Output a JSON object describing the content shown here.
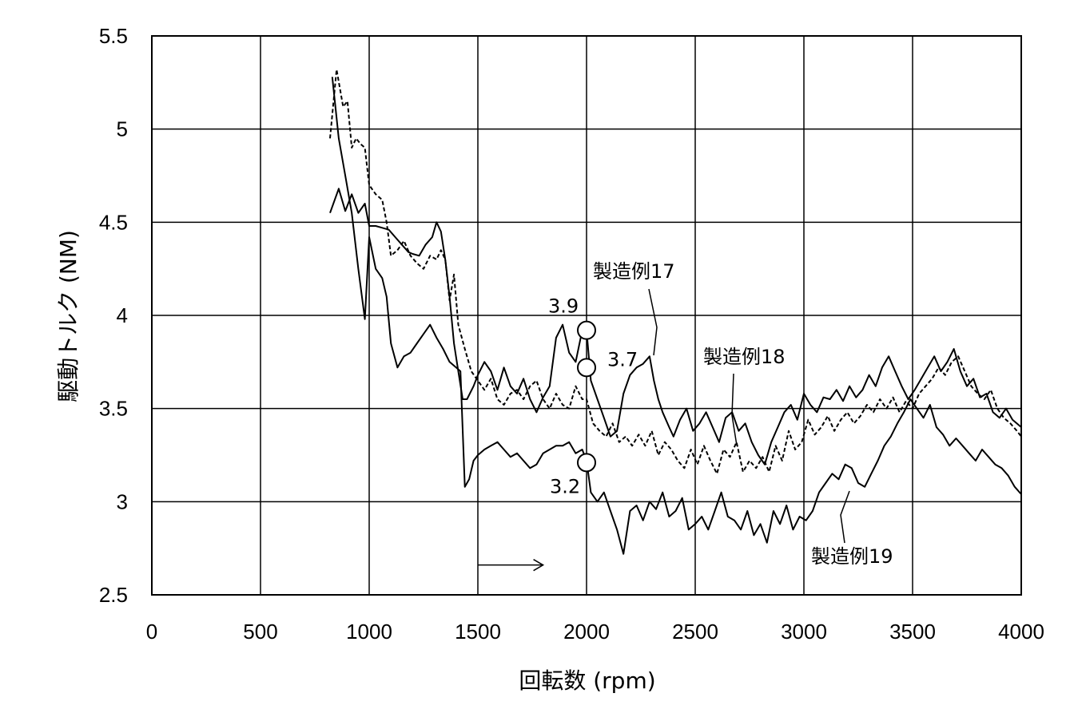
{
  "chart_data": {
    "type": "line",
    "xlabel": "回転数 (rpm)",
    "ylabel": "駆動トルク (NM)",
    "xlim": [
      0,
      4000
    ],
    "ylim": [
      2.5,
      5.5
    ],
    "x_ticks": [
      "0",
      "500",
      "1000",
      "1500",
      "2000",
      "2500",
      "3000",
      "3500",
      "4000"
    ],
    "y_ticks": [
      "2.5",
      "3",
      "3.5",
      "4",
      "4.5",
      "5",
      "5.5"
    ],
    "grid": true,
    "series": [
      {
        "name": "製造例17",
        "style": "solid",
        "x": [
          820,
          860,
          890,
          920,
          950,
          980,
          1000,
          1030,
          1060,
          1090,
          1120,
          1150,
          1180,
          1200,
          1230,
          1260,
          1290,
          1310,
          1330,
          1350,
          1370,
          1390,
          1410,
          1430,
          1450,
          1480,
          1500,
          1530,
          1560,
          1590,
          1620,
          1650,
          1680,
          1710,
          1740,
          1770,
          1800,
          1830,
          1860,
          1890,
          1920,
          1950,
          1980,
          2000,
          2020,
          2050,
          2080,
          2110,
          2140,
          2170,
          2200,
          2230,
          2260,
          2290,
          2310,
          2330,
          2350,
          2380,
          2400,
          2430,
          2460,
          2490,
          2520,
          2550,
          2580,
          2610,
          2640,
          2670,
          2700,
          2730,
          2760,
          2790,
          2820,
          2850,
          2880,
          2910,
          2940,
          2970,
          3000,
          3030,
          3060,
          3090,
          3120,
          3150,
          3180,
          3210,
          3240,
          3270,
          3300,
          3330,
          3360,
          3390,
          3420,
          3450,
          3480,
          3510,
          3540,
          3570,
          3600,
          3630,
          3660,
          3690,
          3720,
          3750,
          3780,
          3810,
          3840,
          3870,
          3900,
          3930,
          3960,
          4000
        ],
        "y": [
          4.55,
          4.68,
          4.56,
          4.65,
          4.55,
          4.6,
          4.48,
          4.48,
          4.47,
          4.46,
          4.42,
          4.38,
          4.34,
          4.33,
          4.32,
          4.38,
          4.42,
          4.5,
          4.45,
          4.3,
          4.1,
          3.85,
          3.7,
          3.55,
          3.55,
          3.62,
          3.68,
          3.75,
          3.7,
          3.6,
          3.72,
          3.62,
          3.58,
          3.66,
          3.55,
          3.48,
          3.56,
          3.62,
          3.88,
          3.95,
          3.8,
          3.75,
          3.92,
          3.92,
          3.65,
          3.55,
          3.45,
          3.35,
          3.38,
          3.58,
          3.68,
          3.72,
          3.74,
          3.78,
          3.65,
          3.55,
          3.48,
          3.4,
          3.35,
          3.44,
          3.5,
          3.38,
          3.42,
          3.48,
          3.4,
          3.32,
          3.45,
          3.48,
          3.38,
          3.42,
          3.32,
          3.25,
          3.2,
          3.32,
          3.4,
          3.48,
          3.52,
          3.44,
          3.58,
          3.52,
          3.48,
          3.56,
          3.55,
          3.6,
          3.54,
          3.62,
          3.56,
          3.6,
          3.68,
          3.62,
          3.72,
          3.78,
          3.7,
          3.62,
          3.55,
          3.6,
          3.66,
          3.72,
          3.78,
          3.7,
          3.75,
          3.82,
          3.7,
          3.62,
          3.66,
          3.56,
          3.58,
          3.48,
          3.45,
          3.5,
          3.44,
          3.4
        ]
      },
      {
        "name": "製造例18",
        "style": "dashed",
        "x": [
          820,
          850,
          880,
          900,
          920,
          940,
          960,
          980,
          1000,
          1030,
          1060,
          1080,
          1100,
          1130,
          1160,
          1190,
          1220,
          1250,
          1280,
          1310,
          1330,
          1350,
          1370,
          1390,
          1410,
          1440,
          1470,
          1500,
          1530,
          1560,
          1590,
          1620,
          1650,
          1680,
          1710,
          1740,
          1770,
          1800,
          1830,
          1860,
          1890,
          1920,
          1950,
          1980,
          2000,
          2030,
          2060,
          2090,
          2120,
          2150,
          2180,
          2210,
          2240,
          2270,
          2300,
          2330,
          2360,
          2390,
          2420,
          2450,
          2480,
          2510,
          2540,
          2570,
          2600,
          2630,
          2660,
          2690,
          2720,
          2750,
          2780,
          2810,
          2840,
          2870,
          2900,
          2930,
          2960,
          2990,
          3020,
          3050,
          3080,
          3110,
          3140,
          3170,
          3200,
          3230,
          3260,
          3290,
          3320,
          3350,
          3380,
          3410,
          3440,
          3470,
          3500,
          3530,
          3560,
          3590,
          3620,
          3650,
          3680,
          3710,
          3740,
          3770,
          3800,
          3830,
          3860,
          3890,
          3920,
          3950,
          3980,
          4000
        ],
        "y": [
          4.95,
          5.32,
          5.12,
          5.15,
          4.9,
          4.95,
          4.92,
          4.9,
          4.7,
          4.65,
          4.62,
          4.5,
          4.32,
          4.35,
          4.4,
          4.32,
          4.28,
          4.25,
          4.32,
          4.3,
          4.35,
          4.3,
          4.08,
          4.22,
          3.95,
          3.82,
          3.7,
          3.65,
          3.6,
          3.66,
          3.55,
          3.52,
          3.58,
          3.6,
          3.55,
          3.62,
          3.65,
          3.55,
          3.5,
          3.58,
          3.52,
          3.5,
          3.62,
          3.55,
          3.55,
          3.42,
          3.38,
          3.35,
          3.42,
          3.32,
          3.35,
          3.3,
          3.36,
          3.3,
          3.38,
          3.25,
          3.32,
          3.28,
          3.22,
          3.18,
          3.28,
          3.2,
          3.3,
          3.22,
          3.15,
          3.28,
          3.24,
          3.32,
          3.16,
          3.22,
          3.18,
          3.24,
          3.16,
          3.3,
          3.22,
          3.38,
          3.28,
          3.32,
          3.44,
          3.36,
          3.4,
          3.46,
          3.38,
          3.44,
          3.48,
          3.42,
          3.46,
          3.52,
          3.48,
          3.55,
          3.5,
          3.56,
          3.48,
          3.54,
          3.5,
          3.58,
          3.62,
          3.66,
          3.72,
          3.68,
          3.75,
          3.78,
          3.7,
          3.62,
          3.58,
          3.55,
          3.6,
          3.5,
          3.45,
          3.42,
          3.38,
          3.35
        ]
      },
      {
        "name": "製造例19",
        "style": "solid",
        "x": [
          830,
          860,
          890,
          920,
          950,
          980,
          1000,
          1030,
          1060,
          1080,
          1100,
          1130,
          1160,
          1190,
          1220,
          1250,
          1280,
          1310,
          1340,
          1370,
          1400,
          1420,
          1440,
          1460,
          1480,
          1500,
          1530,
          1560,
          1590,
          1620,
          1650,
          1680,
          1710,
          1740,
          1770,
          1800,
          1830,
          1860,
          1890,
          1920,
          1950,
          1980,
          2000,
          2020,
          2050,
          2080,
          2110,
          2140,
          2170,
          2200,
          2230,
          2260,
          2290,
          2320,
          2350,
          2380,
          2410,
          2440,
          2470,
          2500,
          2530,
          2560,
          2590,
          2620,
          2650,
          2680,
          2710,
          2740,
          2770,
          2800,
          2830,
          2860,
          2890,
          2920,
          2950,
          2980,
          3010,
          3040,
          3070,
          3100,
          3130,
          3160,
          3190,
          3220,
          3250,
          3280,
          3310,
          3340,
          3370,
          3400,
          3430,
          3460,
          3490,
          3520,
          3550,
          3580,
          3610,
          3640,
          3670,
          3700,
          3730,
          3760,
          3790,
          3820,
          3850,
          3880,
          3910,
          3940,
          3970,
          4000
        ],
        "y": [
          5.28,
          4.95,
          4.75,
          4.55,
          4.25,
          3.98,
          4.42,
          4.25,
          4.2,
          4.1,
          3.85,
          3.72,
          3.78,
          3.8,
          3.85,
          3.9,
          3.95,
          3.88,
          3.82,
          3.75,
          3.72,
          3.7,
          3.08,
          3.12,
          3.22,
          3.25,
          3.28,
          3.3,
          3.32,
          3.28,
          3.24,
          3.26,
          3.22,
          3.18,
          3.2,
          3.26,
          3.28,
          3.3,
          3.3,
          3.32,
          3.26,
          3.28,
          3.22,
          3.05,
          3.0,
          3.05,
          2.95,
          2.85,
          2.72,
          2.95,
          2.98,
          2.9,
          3.0,
          2.96,
          3.05,
          2.92,
          2.95,
          3.02,
          2.85,
          2.88,
          2.92,
          2.85,
          2.95,
          3.05,
          2.92,
          2.9,
          2.85,
          2.95,
          2.82,
          2.88,
          2.78,
          2.95,
          2.88,
          2.98,
          2.85,
          2.92,
          2.9,
          2.95,
          3.05,
          3.1,
          3.15,
          3.12,
          3.2,
          3.18,
          3.1,
          3.08,
          3.15,
          3.22,
          3.3,
          3.35,
          3.42,
          3.48,
          3.55,
          3.5,
          3.45,
          3.52,
          3.4,
          3.36,
          3.3,
          3.34,
          3.3,
          3.26,
          3.22,
          3.28,
          3.24,
          3.2,
          3.18,
          3.14,
          3.08,
          3.04
        ]
      }
    ],
    "markers": [
      {
        "x": 2000,
        "y": 3.92,
        "label": "3.9"
      },
      {
        "x": 2000,
        "y": 3.72,
        "label": "3.7"
      },
      {
        "x": 2000,
        "y": 3.21,
        "label": "3.2"
      }
    ],
    "annotation_arrow": {
      "x_start": 1500,
      "x_end": 1800,
      "y": 2.66
    }
  }
}
